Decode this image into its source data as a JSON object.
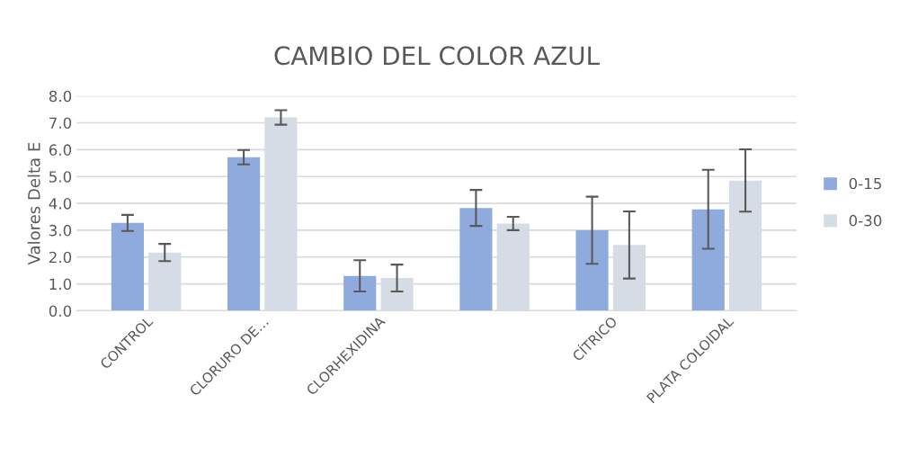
{
  "chart_data": {
    "type": "bar",
    "title": "CAMBIO DEL COLOR AZUL",
    "ylabel": "Valores Delta E",
    "categories": [
      "CONTROL",
      "CLORURO DE…",
      "CLORHEXIDINA",
      null,
      "CÍTRICO",
      "PLATA COLOIDAL"
    ],
    "series": [
      {
        "name": "0-15",
        "color": "#8faadc",
        "values": [
          3.27,
          5.72,
          1.3,
          3.83,
          3.0,
          3.78
        ],
        "errors": [
          0.3,
          0.27,
          0.58,
          0.67,
          1.25,
          1.47
        ]
      },
      {
        "name": "0-30",
        "color": "#d6dce5",
        "values": [
          2.17,
          7.2,
          1.22,
          3.25,
          2.45,
          4.85
        ],
        "errors": [
          0.32,
          0.27,
          0.5,
          0.25,
          1.25,
          1.16
        ]
      }
    ],
    "ylim": [
      0,
      8
    ],
    "yticks": [
      {
        "value": 0,
        "label": "0.0"
      },
      {
        "value": 1,
        "label": "1.0"
      },
      {
        "value": 2,
        "label": "2.0"
      },
      {
        "value": 3,
        "label": "3.0"
      },
      {
        "value": 4,
        "label": "4.0"
      },
      {
        "value": 5,
        "label": "5.0"
      },
      {
        "value": 6,
        "label": "6.0"
      },
      {
        "value": 7,
        "label": "7.0"
      },
      {
        "value": 8,
        "label": "8.0"
      }
    ],
    "grid": "y",
    "legend": "right"
  }
}
